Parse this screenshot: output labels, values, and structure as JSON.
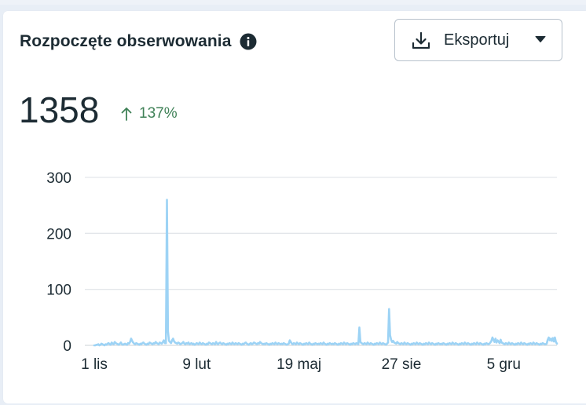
{
  "card": {
    "title": "Rozpoczęte obserwowania",
    "total": "1358",
    "change": "137%",
    "export_label": "Eksportuj"
  },
  "icons": {
    "info": "info-icon",
    "download": "download-icon",
    "caret": "caret-down-icon",
    "trend": "arrow-up-icon"
  },
  "colors": {
    "series": "#9dd3f5",
    "change": "#3f8157",
    "grid": "#e3e6ea",
    "text": "#1c2b33"
  },
  "chart_data": {
    "type": "line",
    "ylim": [
      0,
      300
    ],
    "yticks": [
      "0",
      "100",
      "200",
      "300"
    ],
    "ytick_values": [
      0,
      100,
      200,
      300
    ],
    "xticks": [
      "1 lis",
      "9 lut",
      "19 maj",
      "27 sie",
      "5 gru"
    ],
    "xtick_index": [
      0,
      100,
      200,
      300,
      400
    ],
    "grid": true,
    "legend": "none",
    "series": [
      {
        "values": [
          0,
          0,
          1,
          1,
          2,
          0,
          1,
          3,
          2,
          1,
          0,
          2,
          1,
          3,
          4,
          2,
          1,
          5,
          3,
          2,
          6,
          4,
          3,
          2,
          1,
          3,
          5,
          2,
          1,
          2,
          3,
          2,
          1,
          4,
          3,
          6,
          12,
          8,
          5,
          3,
          2,
          4,
          3,
          2,
          1,
          3,
          2,
          4,
          5,
          3,
          2,
          1,
          3,
          2,
          5,
          4,
          3,
          2,
          4,
          3,
          6,
          4,
          3,
          2,
          5,
          4,
          3,
          6,
          9,
          4,
          4,
          260,
          25,
          8,
          6,
          4,
          9,
          12,
          7,
          5,
          4,
          3,
          5,
          4,
          2,
          3,
          4,
          6,
          3,
          2,
          4,
          3,
          5,
          2,
          3,
          4,
          2,
          3,
          1,
          2,
          4,
          3,
          2,
          5,
          3,
          2,
          4,
          3,
          2,
          1,
          3,
          2,
          5,
          4,
          3,
          2,
          4,
          3,
          2,
          6,
          3,
          2,
          4,
          5,
          3,
          2,
          4,
          3,
          2,
          1,
          3,
          2,
          4,
          3,
          2,
          5,
          3,
          2,
          4,
          3,
          2,
          4,
          3,
          2,
          1,
          3,
          2,
          4,
          5,
          3,
          2,
          1,
          3,
          4,
          2,
          3,
          5,
          4,
          3,
          2,
          4,
          3,
          6,
          4,
          3,
          2,
          3,
          2,
          4,
          3,
          2,
          1,
          3,
          2,
          4,
          3,
          2,
          5,
          3,
          2,
          4,
          3,
          2,
          3,
          2,
          4,
          3,
          2,
          1,
          2,
          3,
          9,
          6,
          3,
          2,
          4,
          3,
          2,
          5,
          3,
          2,
          4,
          3,
          2,
          1,
          3,
          2,
          4,
          3,
          2,
          5,
          3,
          2,
          1,
          3,
          2,
          4,
          3,
          2,
          3,
          2,
          4,
          3,
          2,
          5,
          3,
          2,
          1,
          3,
          2,
          4,
          3,
          2,
          3,
          2,
          4,
          3,
          2,
          1,
          3,
          2,
          4,
          3,
          2,
          5,
          3,
          2,
          4,
          3,
          2,
          1,
          3,
          2,
          4,
          3,
          2,
          4,
          3,
          2,
          32,
          6,
          4,
          3,
          2,
          4,
          3,
          2,
          5,
          3,
          2,
          4,
          3,
          2,
          1,
          3,
          2,
          4,
          3,
          2,
          5,
          3,
          2,
          4,
          3,
          2,
          1,
          3,
          5,
          65,
          18,
          10,
          6,
          8,
          5,
          4,
          3,
          6,
          4,
          3,
          2,
          4,
          3,
          2,
          5,
          3,
          2,
          4,
          3,
          2,
          1,
          3,
          2,
          4,
          3,
          2,
          5,
          3,
          2,
          4,
          3,
          2,
          1,
          3,
          2,
          4,
          3,
          2,
          5,
          3,
          2,
          4,
          3,
          2,
          1,
          3,
          2,
          4,
          3,
          2,
          3,
          2,
          4,
          3,
          2,
          1,
          3,
          2,
          4,
          3,
          2,
          5,
          3,
          2,
          4,
          3,
          2,
          1,
          3,
          2,
          4,
          3,
          2,
          5,
          3,
          2,
          4,
          3,
          2,
          1,
          3,
          2,
          4,
          3,
          2,
          5,
          3,
          2,
          4,
          3,
          2,
          1,
          3,
          2,
          4,
          3,
          2,
          3,
          5,
          8,
          14,
          10,
          6,
          12,
          5,
          9,
          7,
          4,
          10,
          5,
          4,
          3,
          2,
          4,
          3,
          2,
          5,
          3,
          2,
          4,
          3,
          2,
          1,
          3,
          2,
          4,
          3,
          2,
          5,
          3,
          2,
          4,
          3,
          2,
          1,
          3,
          2,
          4,
          3,
          2,
          5,
          3,
          2,
          4,
          3,
          2,
          1,
          3,
          2,
          4,
          3,
          2,
          2,
          3,
          10,
          14,
          9,
          12,
          8,
          13,
          7,
          14,
          6,
          3
        ]
      }
    ]
  }
}
